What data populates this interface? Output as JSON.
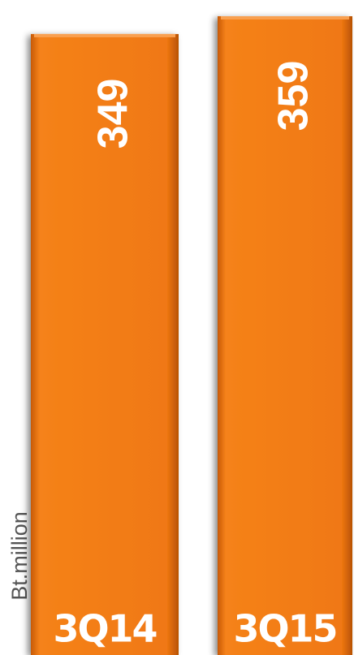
{
  "chart_data": {
    "type": "bar",
    "y_axis_label": "Bt.million",
    "categories": [
      "3Q14",
      "3Q15"
    ],
    "values": [
      349,
      359
    ],
    "color": "#f07812"
  }
}
